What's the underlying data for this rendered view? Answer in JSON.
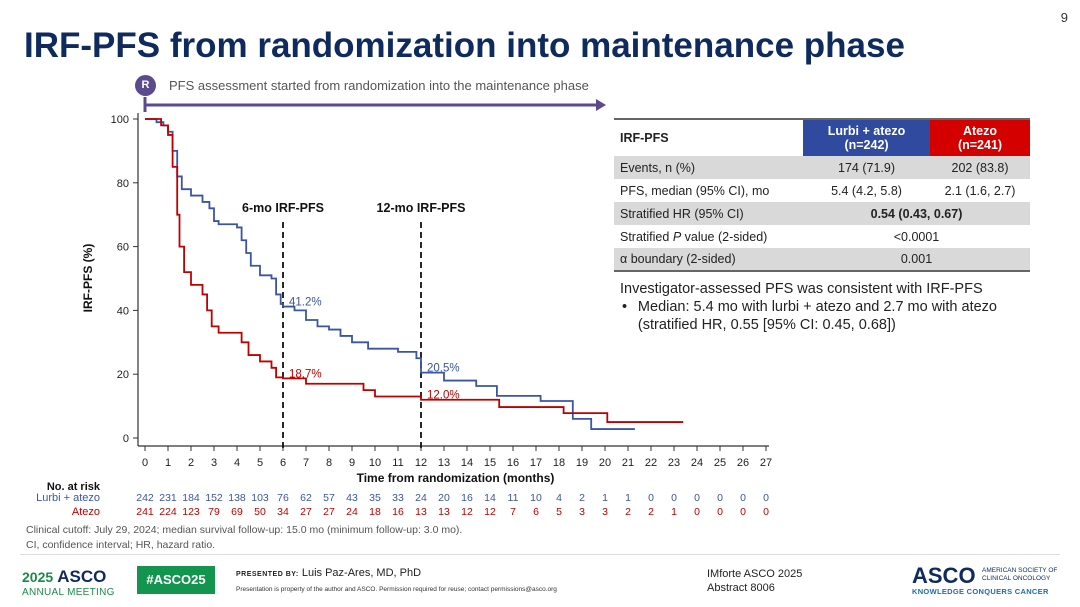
{
  "slide": {
    "page_number": "9",
    "title": "IRF-PFS from randomization into maintenance phase",
    "randomization_marker": "R",
    "assessment_note": "PFS assessment started from randomization into the maintenance phase"
  },
  "colors": {
    "title": "#0e2a5e",
    "lurbi_atezo": "#3a55a5",
    "atezo": "#c00000",
    "arrow": "#5b4a8c"
  },
  "chart_data": {
    "type": "line",
    "subtype": "kaplan-meier step",
    "xlabel": "Time from randomization (months)",
    "ylabel": "IRF-PFS (%)",
    "xlim": [
      0,
      27
    ],
    "ylim": [
      0,
      100
    ],
    "x_ticks": [
      0,
      1,
      2,
      3,
      4,
      5,
      6,
      7,
      8,
      9,
      10,
      11,
      12,
      13,
      14,
      15,
      16,
      17,
      18,
      19,
      20,
      21,
      22,
      23,
      24,
      25,
      26,
      27
    ],
    "y_ticks": [
      0,
      20,
      40,
      60,
      80,
      100
    ],
    "grid": false,
    "series": [
      {
        "name": "Lurbi + atezo",
        "color": "#3a55a5",
        "points": [
          [
            0,
            100
          ],
          [
            0.5,
            99
          ],
          [
            0.8,
            98
          ],
          [
            1.0,
            96
          ],
          [
            1.2,
            90
          ],
          [
            1.4,
            82
          ],
          [
            1.6,
            78
          ],
          [
            2.0,
            76
          ],
          [
            2.5,
            74
          ],
          [
            2.8,
            72
          ],
          [
            3.0,
            68
          ],
          [
            3.2,
            67
          ],
          [
            4.0,
            66
          ],
          [
            4.2,
            62
          ],
          [
            4.4,
            58
          ],
          [
            4.6,
            54
          ],
          [
            5.0,
            51
          ],
          [
            5.5,
            50
          ],
          [
            5.7,
            45
          ],
          [
            5.9,
            42
          ],
          [
            6.0,
            41.2
          ],
          [
            6.5,
            40
          ],
          [
            7.0,
            37
          ],
          [
            7.5,
            35
          ],
          [
            8.0,
            34
          ],
          [
            8.5,
            32
          ],
          [
            9.0,
            30
          ],
          [
            9.7,
            28
          ],
          [
            11.0,
            27
          ],
          [
            11.8,
            25
          ],
          [
            12.0,
            20.5
          ],
          [
            13.0,
            18
          ],
          [
            14.4,
            16.3
          ],
          [
            15.3,
            13.2
          ],
          [
            17.2,
            11.6
          ],
          [
            18.6,
            6
          ],
          [
            19.4,
            2.8
          ],
          [
            21.3,
            2.8
          ]
        ]
      },
      {
        "name": "Atezo",
        "color": "#c00000",
        "points": [
          [
            0,
            100
          ],
          [
            0.7,
            98
          ],
          [
            1.0,
            95
          ],
          [
            1.2,
            85
          ],
          [
            1.4,
            70
          ],
          [
            1.5,
            60
          ],
          [
            1.7,
            52
          ],
          [
            2.0,
            48
          ],
          [
            2.5,
            45
          ],
          [
            2.7,
            40
          ],
          [
            2.9,
            35
          ],
          [
            3.2,
            33
          ],
          [
            4.0,
            33
          ],
          [
            4.2,
            30
          ],
          [
            4.5,
            26
          ],
          [
            5.0,
            24
          ],
          [
            5.5,
            22
          ],
          [
            5.7,
            19
          ],
          [
            6.0,
            18.7
          ],
          [
            7.0,
            17
          ],
          [
            9.0,
            17
          ],
          [
            9.5,
            15
          ],
          [
            10.0,
            13
          ],
          [
            12.0,
            12
          ],
          [
            15.4,
            9.7
          ],
          [
            18.2,
            7.8
          ],
          [
            20.1,
            5
          ],
          [
            23.4,
            5
          ]
        ]
      }
    ],
    "reference_lines": [
      {
        "x": 6,
        "label": "6-mo IRF-PFS"
      },
      {
        "x": 12,
        "label": "12-mo IRF-PFS"
      }
    ],
    "annotations": [
      {
        "x": 6,
        "y": 41.2,
        "text": "41.2%",
        "series": "Lurbi + atezo"
      },
      {
        "x": 6,
        "y": 18.7,
        "text": "18.7%",
        "series": "Atezo"
      },
      {
        "x": 12,
        "y": 20.5,
        "text": "20.5%",
        "series": "Lurbi + atezo"
      },
      {
        "x": 12,
        "y": 12.0,
        "text": "12.0%",
        "series": "Atezo"
      }
    ],
    "at_risk": {
      "title": "No. at risk",
      "rows": [
        {
          "name": "Lurbi + atezo",
          "values": [
            242,
            231,
            184,
            152,
            138,
            103,
            76,
            62,
            57,
            43,
            35,
            33,
            24,
            20,
            16,
            14,
            11,
            10,
            4,
            2,
            1,
            1,
            0,
            0,
            0,
            0,
            0,
            0
          ]
        },
        {
          "name": "Atezo",
          "values": [
            241,
            224,
            123,
            79,
            69,
            50,
            34,
            27,
            27,
            24,
            18,
            16,
            13,
            13,
            12,
            12,
            7,
            6,
            5,
            3,
            3,
            2,
            2,
            1,
            0,
            0,
            0,
            0
          ]
        }
      ]
    }
  },
  "table": {
    "header": {
      "label": "IRF-PFS",
      "col1": "Lurbi + atezo",
      "col1_n": "(n=242)",
      "col2": "Atezo",
      "col2_n": "(n=241)"
    },
    "rows": [
      {
        "label": "Events, n (%)",
        "c1": "174 (71.9)",
        "c2": "202 (83.8)"
      },
      {
        "label": "PFS, median (95% CI), mo",
        "c1": "5.4 (4.2, 5.8)",
        "c2": "2.1 (1.6, 2.7)"
      },
      {
        "label": "Stratified HR (95% CI)",
        "merged": "0.54 (0.43, 0.67)"
      },
      {
        "label_pre": "Stratified ",
        "label_em": "P",
        "label_post": " value (2-sided)",
        "merged": "<0.0001"
      },
      {
        "label": "α boundary (2-sided)",
        "merged": "0.001"
      }
    ]
  },
  "note": {
    "heading": "Investigator-assessed PFS was consistent with IRF-PFS",
    "bullet": "•",
    "text": "Median: 5.4 mo with lurbi + atezo and 2.7 mo with atezo (stratified HR, 0.55 [95% CI: 0.45, 0.68])"
  },
  "footnotes": [
    "Clinical cutoff: July 29, 2024; median survival follow-up: 15.0 mo (minimum follow-up: 3.0 mo).",
    "CI, confidence interval; HR, hazard ratio."
  ],
  "footer": {
    "asco_year": "2025",
    "asco_name": "ASCO",
    "annual_meeting": "ANNUAL MEETING",
    "hashtag": "#ASCO25",
    "presented_by_label": "PRESENTED BY:",
    "presenter": "Luis Paz-Ares, MD, PhD",
    "copyright": "Presentation is property of the author and ASCO. Permission required for reuse; contact permissions@asco.org",
    "study": "IMforte ASCO 2025",
    "abstract": "Abstract 8006",
    "society_logo": "ASCO",
    "society_name": "AMERICAN SOCIETY OF CLINICAL ONCOLOGY",
    "tagline": "KNOWLEDGE CONQUERS CANCER"
  }
}
